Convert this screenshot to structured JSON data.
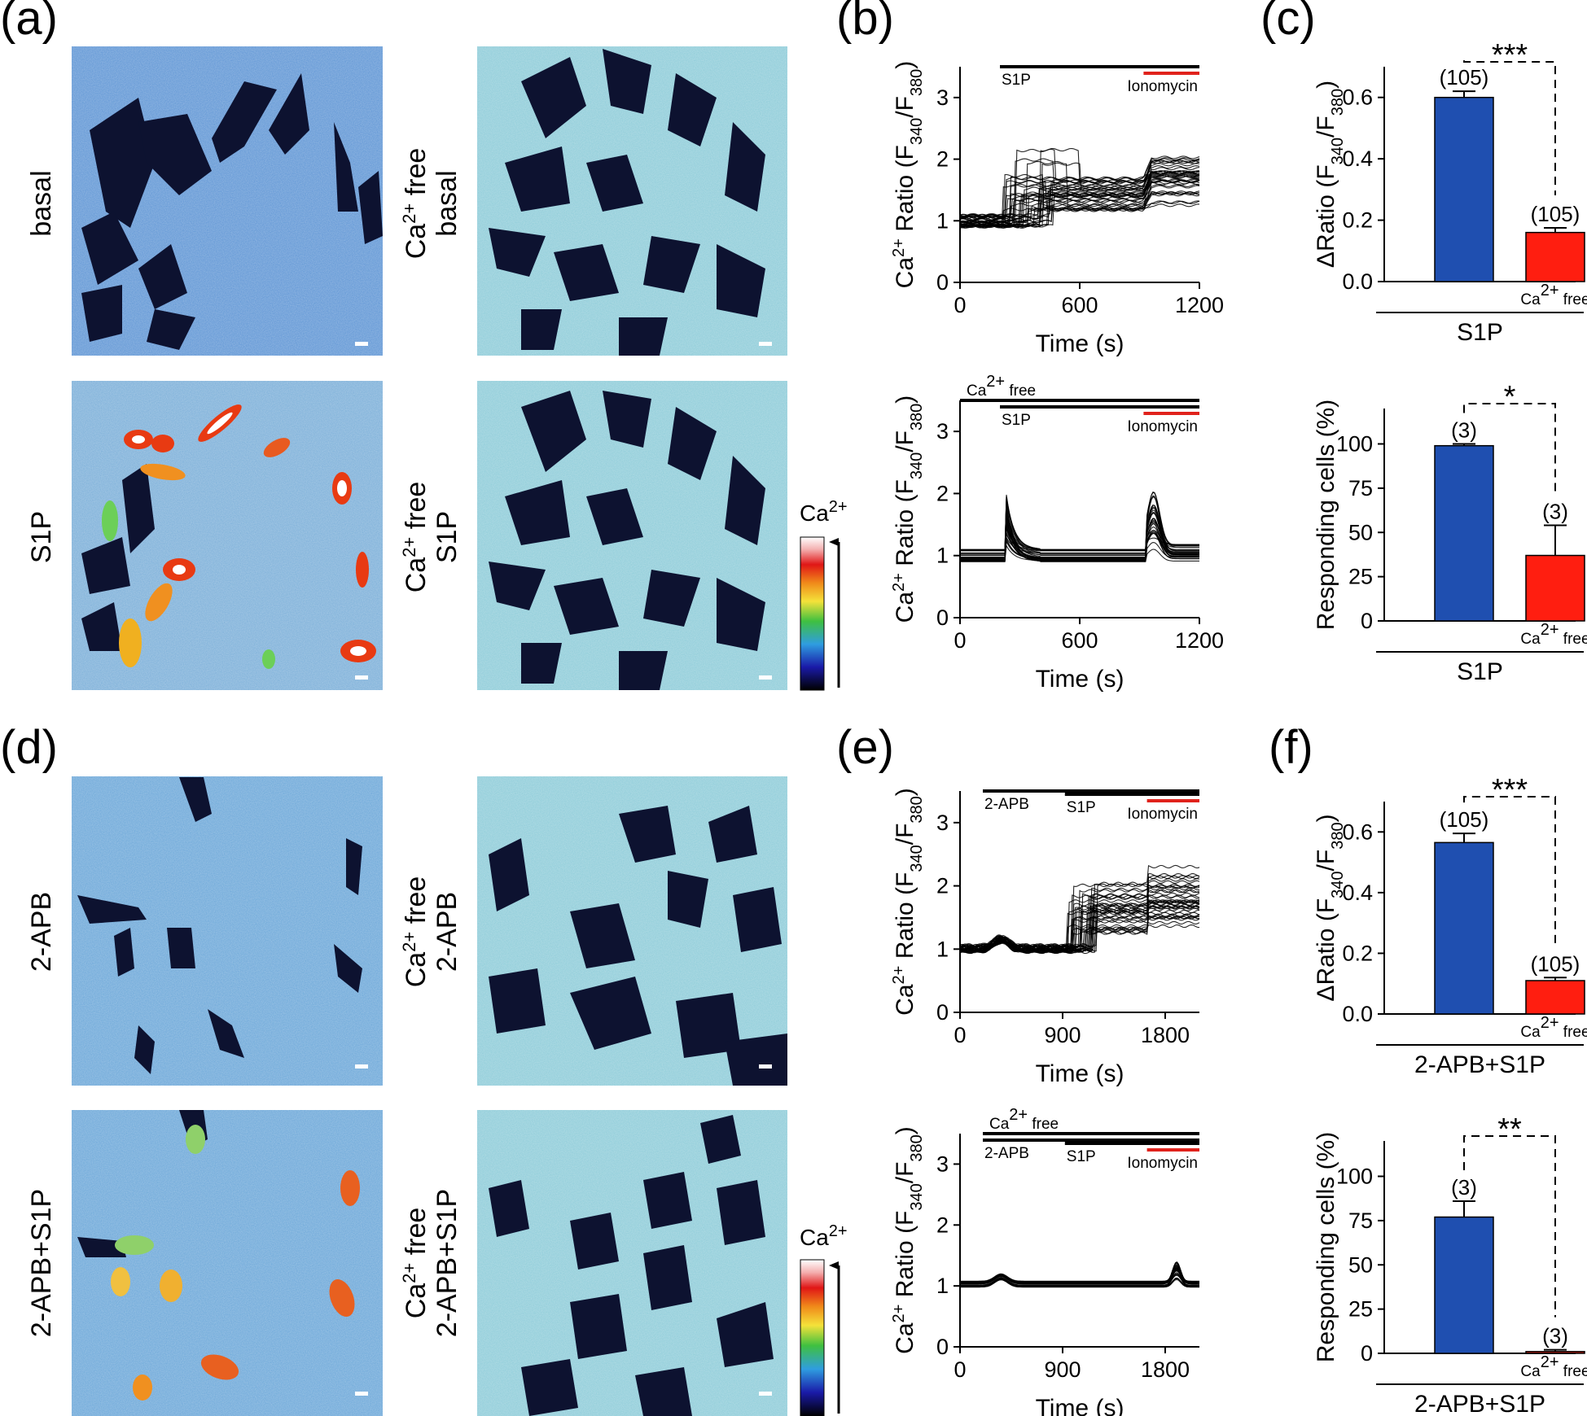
{
  "panel_labels": {
    "a": "(a)",
    "b": "(b)",
    "c": "(c)",
    "d": "(d)",
    "e": "(e)",
    "f": "(f)"
  },
  "colors": {
    "blue_bar": "#1f4fb0",
    "red_bar": "#ff1e10",
    "ionomycin": "#e0221c",
    "cell_bg": "#5d94d4",
    "cell_bg_light": "#8ccbd8",
    "cell_dark": "#0d1230"
  },
  "images": {
    "a": {
      "basal": "basal",
      "s1p": "S1P",
      "ca_free_basal": {
        "ca": "Ca",
        "sup": "2+",
        "free": " free",
        "cond": "basal"
      },
      "ca_free_s1p": {
        "ca": "Ca",
        "sup": "2+",
        "free": " free",
        "cond": "S1P"
      },
      "colorbar": {
        "ca": "Ca",
        "sup": "2+"
      }
    },
    "d": {
      "apb": "2-APB",
      "apb_s1p": "2-APB+S1P",
      "ca_free_apb": {
        "ca": "Ca",
        "sup": "2+",
        "free": " free",
        "cond": "2-APB"
      },
      "ca_free_apb_s1p": {
        "ca": "Ca",
        "sup": "2+",
        "free": " free",
        "cond": "2-APB+S1P"
      },
      "colorbar": {
        "ca": "Ca",
        "sup": "2+"
      }
    }
  },
  "trace_ylabel": {
    "pre": "Ca",
    "sup": "2+",
    "mid": " Ratio (F",
    "sub1": "340",
    "slash": "/F",
    "sub2": "380",
    "post": ")"
  },
  "delta_ylabel": {
    "pre": "ΔRatio (F",
    "sub1": "340",
    "slash": "/F",
    "sub2": "380",
    "post": ")"
  },
  "resp_ylabel": "Responding cells (%)",
  "time_xlabel": "Time (s)",
  "ca_free_small": {
    "ca": "Ca",
    "sup": "2+",
    "free": " free"
  },
  "chart_data": [
    {
      "id": "b-top",
      "type": "line",
      "title": "",
      "xlabel": "Time (s)",
      "ylabel": "Ca2+ Ratio (F340/F380)",
      "xlim": [
        0,
        1200
      ],
      "ylim": [
        0,
        3.5
      ],
      "xticks": [
        0,
        600,
        1200
      ],
      "yticks": [
        0,
        1,
        2,
        3
      ],
      "annotations": {
        "bars": [
          {
            "label": "S1P",
            "start": 200,
            "end": 1200
          },
          {
            "label": "Ionomycin",
            "start": 920,
            "end": 1200,
            "color": "red"
          }
        ]
      },
      "series_summary": "about 40 single-cell traces; baseline ~1.0 until 200 s, rise to 1.2-2.2 after S1P, further rise to ~1.3-2.0 after ionomycin at 920 s"
    },
    {
      "id": "b-bottom",
      "type": "line",
      "title": "",
      "xlabel": "Time (s)",
      "ylabel": "Ca2+ Ratio (F340/F380)",
      "xlim": [
        0,
        1200
      ],
      "ylim": [
        0,
        3.5
      ],
      "xticks": [
        0,
        600,
        1200
      ],
      "yticks": [
        0,
        1,
        2,
        3
      ],
      "annotations": {
        "bars": [
          {
            "label": "Ca2+ free",
            "start": 0,
            "end": 1200
          },
          {
            "label": "S1P",
            "start": 200,
            "end": 1200
          },
          {
            "label": "Ionomycin",
            "start": 920,
            "end": 1200,
            "color": "red"
          }
        ]
      },
      "series_summary": "baseline ~1.0; transient spike to ~1.7 near 240 s; ionomycin peak to ~2.0 at ~960 s"
    },
    {
      "id": "c-top",
      "type": "bar",
      "title": "",
      "xlabel": "S1P",
      "ylabel": "ΔRatio (F340/F380)",
      "categories": [
        "",
        "Ca2+ free"
      ],
      "values": [
        0.6,
        0.16
      ],
      "errors": [
        0.02,
        0.015
      ],
      "n": [
        "(105)",
        "(105)"
      ],
      "ylim": [
        0,
        0.7
      ],
      "yticks": [
        0.0,
        0.2,
        0.4,
        0.6
      ],
      "significance": "***"
    },
    {
      "id": "c-bottom",
      "type": "bar",
      "title": "",
      "xlabel": "S1P",
      "ylabel": "Responding cells (%)",
      "categories": [
        "",
        "Ca2+ free"
      ],
      "values": [
        99,
        37
      ],
      "errors": [
        1,
        17
      ],
      "n": [
        "(3)",
        "(3)"
      ],
      "ylim": [
        0,
        120
      ],
      "yticks": [
        0,
        25,
        50,
        75,
        100
      ],
      "significance": "*"
    },
    {
      "id": "e-top",
      "type": "line",
      "title": "",
      "xlabel": "Time (s)",
      "ylabel": "Ca2+ Ratio (F340/F380)",
      "xlim": [
        0,
        2100
      ],
      "ylim": [
        0,
        3.5
      ],
      "xticks": [
        0,
        900,
        1800
      ],
      "yticks": [
        0,
        1,
        2,
        3
      ],
      "annotations": {
        "bars": [
          {
            "label": "2-APB",
            "start": 200,
            "end": 2100
          },
          {
            "label": "S1P",
            "start": 920,
            "end": 2100
          },
          {
            "label": "Ionomycin",
            "start": 1640,
            "end": 2100,
            "color": "red"
          }
        ]
      },
      "series_summary": "baseline ~1.0; small bump ~1.15 near 350 s; rise to 1.2-2.3 after S1P at ~920 s; slight further rise after ionomycin"
    },
    {
      "id": "e-bottom",
      "type": "line",
      "title": "",
      "xlabel": "Time (s)",
      "ylabel": "Ca2+ Ratio (F340/F380)",
      "xlim": [
        0,
        2100
      ],
      "ylim": [
        0,
        3.5
      ],
      "xticks": [
        0,
        900,
        1800
      ],
      "yticks": [
        0,
        1,
        2,
        3
      ],
      "annotations": {
        "bars": [
          {
            "label": "Ca2+ free",
            "start": 200,
            "end": 2100
          },
          {
            "label": "2-APB",
            "start": 200,
            "end": 2100
          },
          {
            "label": "S1P",
            "start": 920,
            "end": 2100
          },
          {
            "label": "Ionomycin",
            "start": 1640,
            "end": 2100,
            "color": "red"
          }
        ]
      },
      "series_summary": "flat ~1.05-1.1 with small bump near 350 s and small peak ~1.3 near 1900 s"
    },
    {
      "id": "f-top",
      "type": "bar",
      "title": "",
      "xlabel": "2-APB+S1P",
      "ylabel": "ΔRatio (F340/F380)",
      "categories": [
        "",
        "Ca2+ free"
      ],
      "values": [
        0.565,
        0.11
      ],
      "errors": [
        0.03,
        0.01
      ],
      "n": [
        "(105)",
        "(105)"
      ],
      "ylim": [
        0,
        0.7
      ],
      "yticks": [
        0.0,
        0.2,
        0.4,
        0.6
      ],
      "significance": "***"
    },
    {
      "id": "f-bottom",
      "type": "bar",
      "title": "",
      "xlabel": "2-APB+S1P",
      "ylabel": "Responding cells (%)",
      "categories": [
        "",
        "Ca2+ free"
      ],
      "values": [
        77,
        1
      ],
      "errors": [
        9,
        1
      ],
      "n": [
        "(3)",
        "(3)"
      ],
      "ylim": [
        0,
        120
      ],
      "yticks": [
        0,
        25,
        50,
        75,
        100
      ],
      "significance": "**"
    }
  ]
}
